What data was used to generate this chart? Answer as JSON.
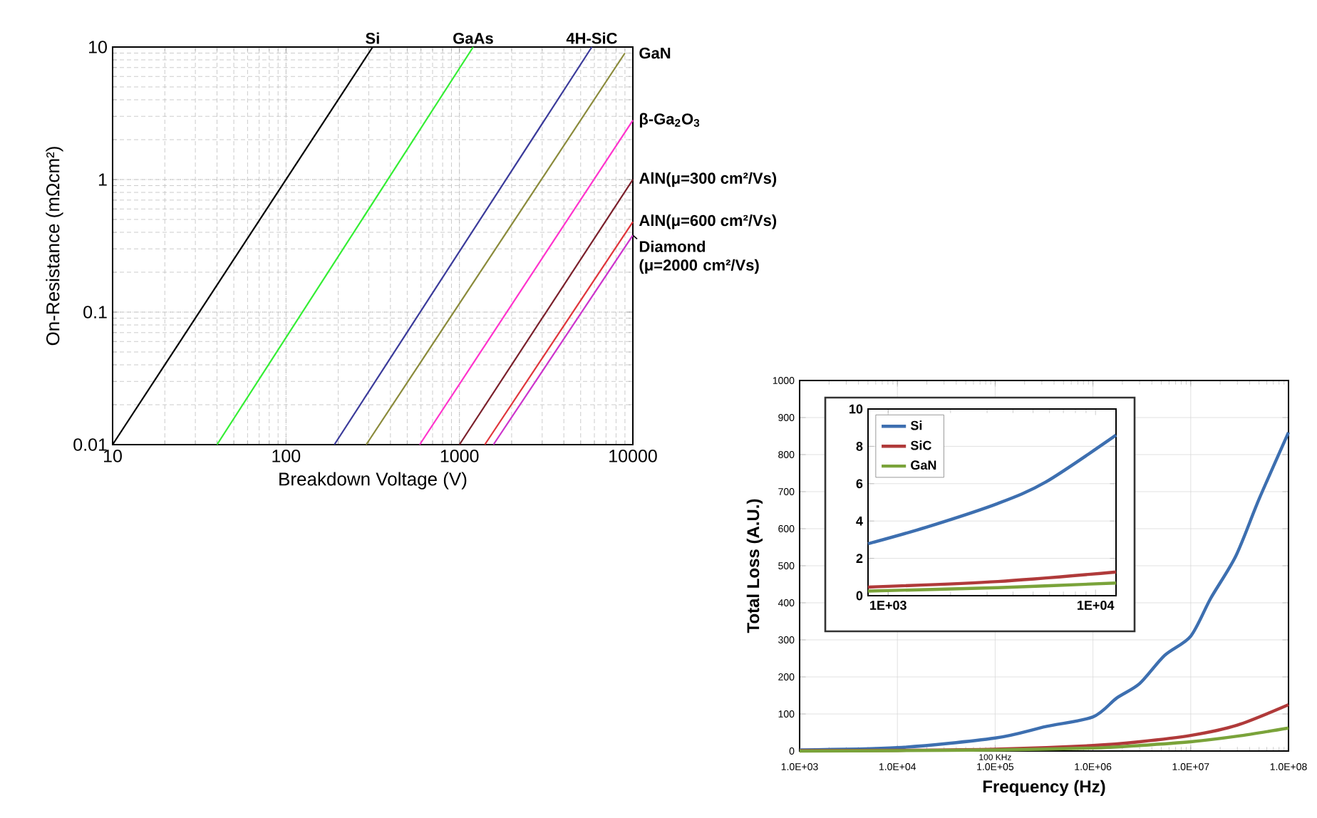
{
  "chart_data": [
    {
      "type": "line",
      "xlabel": "Breakdown Voltage (V)",
      "ylabel": "On-Resistance (mΩcm²)",
      "log": "xy",
      "grid": true,
      "legend": false,
      "marker": "none",
      "line_style": "solid",
      "xlim": [
        10,
        10000
      ],
      "ylim": [
        0.01,
        10
      ],
      "xticks": [
        10,
        100,
        1000,
        10000
      ],
      "yticks": [
        0.01,
        0.1,
        1,
        10
      ],
      "series": [
        {
          "name": "Si",
          "color": "#000000",
          "x": [
            10,
            316
          ],
          "values": [
            0.01,
            10
          ]
        },
        {
          "name": "GaAs",
          "color": "#33ee33",
          "x": [
            40,
            1200
          ],
          "values": [
            0.01,
            10
          ]
        },
        {
          "name": "4H-SiC",
          "color": "#3a3a9a",
          "x": [
            190,
            5800
          ],
          "values": [
            0.01,
            10
          ]
        },
        {
          "name": "GaN",
          "color": "#8a8a3a",
          "x": [
            290,
            9000
          ],
          "values": [
            0.01,
            9
          ]
        },
        {
          "name": "β-Ga$_{2}$O$_{3}$",
          "color": "#ff33cc",
          "x": [
            590,
            10000
          ],
          "values": [
            0.01,
            2.8
          ]
        },
        {
          "name": "AlN(μ=300 cm²/Vs)",
          "color": "#7a1f2a",
          "x": [
            1000,
            10000
          ],
          "values": [
            0.01,
            1
          ]
        },
        {
          "name": "AlN(μ=600 cm²/Vs)",
          "color": "#e0343a",
          "x": [
            1400,
            10000
          ],
          "values": [
            0.01,
            0.48
          ]
        },
        {
          "name": "Diamond (μ=2000 cm²/Vs)",
          "color": "#cc33cc",
          "x": [
            1570,
            10000
          ],
          "values": [
            0.01,
            0.38
          ]
        }
      ]
    },
    {
      "type": "line",
      "xlabel": "Frequency (Hz)",
      "ylabel": "Total Loss (A.U.)",
      "log": "x",
      "grid": true,
      "legend": false,
      "marker": "none",
      "line_style": "solid",
      "xlim": [
        1000,
        100000000
      ],
      "ylim": [
        0,
        1000
      ],
      "xticks": [
        {
          "value": 1000,
          "label": "1.0E+03"
        },
        {
          "value": 10000,
          "label": "1.0E+04"
        },
        {
          "value": 100000,
          "label": "1.0E+05"
        },
        {
          "value": 1000000,
          "label": "1.0E+06"
        },
        {
          "value": 10000000,
          "label": "1.0E+07"
        },
        {
          "value": 100000000,
          "label": "1.0E+08"
        }
      ],
      "yticks": [
        0,
        100,
        200,
        300,
        400,
        500,
        600,
        700,
        800,
        900,
        1000
      ],
      "annotations": [
        {
          "text": "100 KHz",
          "x": 100000,
          "y": 0
        }
      ],
      "series": [
        {
          "color": "#3d6fb0",
          "x": [
            1000,
            10000,
            100000,
            330000,
            1000000,
            1750000,
            3000000,
            5400000,
            10000000,
            16000000,
            29000000,
            50000000,
            100000000
          ],
          "values": [
            3,
            9,
            35,
            66,
            92,
            143,
            182,
            258,
            310,
            412,
            527,
            680,
            860
          ]
        },
        {
          "color": "#b03a3a",
          "x": [
            1000,
            10000,
            100000,
            1000000,
            3000000,
            10000000,
            30000000,
            100000000
          ],
          "values": [
            1,
            2,
            5,
            15,
            25,
            42,
            70,
            125
          ]
        },
        {
          "color": "#7aa33a",
          "x": [
            1000,
            10000,
            100000,
            1000000,
            3000000,
            10000000,
            30000000,
            100000000
          ],
          "values": [
            0,
            1,
            3,
            8,
            15,
            25,
            40,
            62
          ]
        }
      ]
    },
    {
      "type": "line",
      "log": "x",
      "grid": "y",
      "legend": "top left",
      "marker": "none",
      "line_style": "solid",
      "xlim": [
        800,
        12560
      ],
      "ylim": [
        0,
        10
      ],
      "xticks": [
        {
          "value": 1000,
          "label": "1E+03"
        },
        {
          "value": 10000,
          "label": "1E+04"
        }
      ],
      "yticks": [
        0,
        2,
        4,
        6,
        8,
        10
      ],
      "series": [
        {
          "name": "Si",
          "color": "#3d6fb0",
          "x": [
            800,
            1530,
            3380,
            5740,
            12560
          ],
          "values": [
            2.78,
            3.67,
            4.94,
            6.08,
            8.6
          ]
        },
        {
          "name": "SiC",
          "color": "#b03a3a",
          "x": [
            800,
            3380,
            12560
          ],
          "values": [
            0.46,
            0.76,
            1.27
          ]
        },
        {
          "name": "GaN",
          "color": "#7aa33a",
          "x": [
            800,
            3380,
            12560
          ],
          "values": [
            0.25,
            0.43,
            0.68
          ]
        }
      ]
    }
  ]
}
